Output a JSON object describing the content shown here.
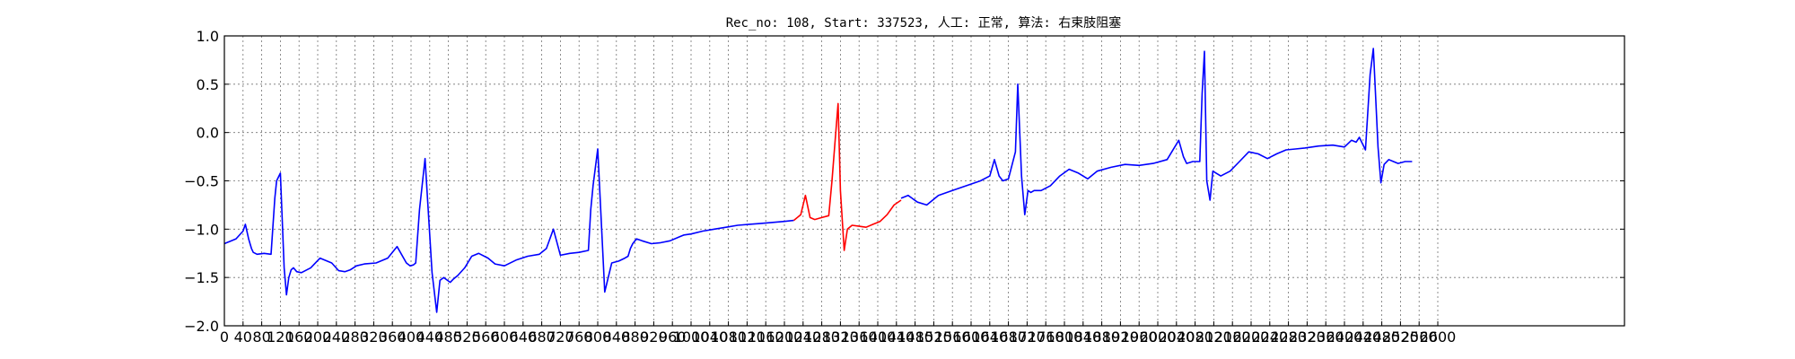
{
  "chart_data": {
    "type": "line",
    "title": "Rec_no: 108, Start: 337523, 人工: 正常, 算法: 右束肢阻塞",
    "xlabel": "",
    "ylabel": "",
    "xlim": [
      0,
      3000
    ],
    "ylim": [
      -2.0,
      1.0
    ],
    "x_ticks": [
      0,
      40,
      80,
      120,
      160,
      200,
      240,
      280,
      320,
      360,
      400,
      440,
      480,
      520,
      560,
      600,
      640,
      680,
      720,
      760,
      800,
      840,
      880,
      920,
      960,
      1000,
      1040,
      1080,
      1120,
      1160,
      1200,
      1240,
      1280,
      1320,
      1360,
      1400,
      1440,
      1480,
      1520,
      1560,
      1600,
      1640,
      1680,
      1720,
      1760,
      1800,
      1840,
      1880,
      1920,
      1960,
      2000,
      2040,
      2080,
      2120,
      2160,
      2200,
      2240,
      2280,
      2320,
      2360,
      2400,
      2440,
      2480,
      2520,
      2560,
      2600
    ],
    "x_tick_labels": [
      "0",
      "40",
      "80",
      "120",
      "160",
      "200",
      "240",
      "280",
      "320",
      "360",
      "400",
      "440",
      "480",
      "520",
      "560",
      "600",
      "640",
      "680",
      "720",
      "760",
      "800",
      "840",
      "880",
      "920",
      "960",
      "1000",
      "1040",
      "1080",
      "1120",
      "1160",
      "1200",
      "1240",
      "1280",
      "1320",
      "1360",
      "1400",
      "1440",
      "1480",
      "1520",
      "1560",
      "1600",
      "1640",
      "1680",
      "1720",
      "1760",
      "1800",
      "1840",
      "1880",
      "1920",
      "1960",
      "2000",
      "2040",
      "2080",
      "2120",
      "2160",
      "2200",
      "2240",
      "2280",
      "2320",
      "2360",
      "2400",
      "2440",
      "2480",
      "2520",
      "2560",
      "2600"
    ],
    "y_ticks": [
      -2.0,
      -1.5,
      -1.0,
      -0.5,
      0.0,
      0.5,
      1.0
    ],
    "y_tick_labels": [
      "−2.0",
      "−1.5",
      "−1.0",
      "−0.5",
      "0.0",
      "0.5",
      "1.0"
    ],
    "grid": true,
    "series": [
      {
        "color": "#0000ff",
        "x": [
          0,
          25,
          40,
          45,
          52,
          58,
          62,
          70,
          85,
          100,
          108,
          112,
          120,
          128,
          133,
          138,
          143,
          148,
          155,
          165,
          185,
          205,
          230,
          245,
          258,
          270,
          283,
          300,
          325,
          350,
          370,
          390,
          398,
          405,
          410,
          418,
          430,
          445,
          455,
          462,
          470,
          478,
          484,
          490,
          500,
          515,
          530,
          545,
          565,
          580,
          600,
          625,
          650,
          675,
          690,
          705,
          720,
          740,
          760,
          780,
          785,
          790,
          800,
          815,
          830,
          845,
          858,
          865,
          870,
          875,
          883,
          895,
          915,
          935,
          955,
          975,
          985,
          1000,
          1025,
          1050,
          1075,
          1100,
          1125,
          1150,
          1175,
          1200,
          1220
        ],
        "y": [
          -1.15,
          -1.1,
          -1.02,
          -0.95,
          -1.1,
          -1.2,
          -1.24,
          -1.26,
          -1.25,
          -1.26,
          -0.68,
          -0.5,
          -0.42,
          -1.4,
          -1.68,
          -1.5,
          -1.42,
          -1.4,
          -1.44,
          -1.45,
          -1.4,
          -1.3,
          -1.35,
          -1.43,
          -1.44,
          -1.42,
          -1.38,
          -1.36,
          -1.35,
          -1.3,
          -1.18,
          -1.35,
          -1.38,
          -1.37,
          -1.35,
          -0.8,
          -0.27,
          -1.45,
          -1.86,
          -1.53,
          -1.5,
          -1.53,
          -1.55,
          -1.52,
          -1.48,
          -1.4,
          -1.28,
          -1.25,
          -1.3,
          -1.36,
          -1.38,
          -1.32,
          -1.28,
          -1.26,
          -1.2,
          -1.0,
          -1.27,
          -1.25,
          -1.24,
          -1.22,
          -0.8,
          -0.55,
          -0.17,
          -1.65,
          -1.35,
          -1.33,
          -1.3,
          -1.28,
          -1.2,
          -1.15,
          -1.1,
          -1.12,
          -1.15,
          -1.14,
          -1.12,
          -1.08,
          -1.06,
          -1.05,
          -1.02,
          -1.0,
          -0.98,
          -0.96,
          -0.95,
          -0.94,
          -0.93,
          -0.92,
          -0.91
        ]
      },
      {
        "color": "#ff0000",
        "x": [
          1220,
          1235,
          1245,
          1255,
          1265,
          1280,
          1295,
          1302,
          1308,
          1315,
          1320,
          1328,
          1335,
          1345,
          1360,
          1375,
          1390,
          1405,
          1420,
          1435,
          1450
        ],
        "y": [
          -0.91,
          -0.85,
          -0.65,
          -0.88,
          -0.9,
          -0.88,
          -0.86,
          -0.5,
          -0.12,
          0.3,
          -0.6,
          -1.22,
          -1.0,
          -0.96,
          -0.97,
          -0.98,
          -0.95,
          -0.92,
          -0.85,
          -0.75,
          -0.7
        ]
      },
      {
        "color": "#0000ff",
        "x": [
          1450,
          1465,
          1485,
          1505,
          1530,
          1560,
          1590,
          1620,
          1640,
          1650,
          1660,
          1668,
          1680,
          1695,
          1700,
          1708,
          1715,
          1722,
          1728,
          1735,
          1750,
          1770,
          1790,
          1810,
          1830,
          1850,
          1870,
          1900,
          1930,
          1960,
          1990,
          2020,
          2045,
          2055,
          2062,
          2075,
          2090,
          2095,
          2100,
          2105,
          2112,
          2118,
          2125,
          2135,
          2155,
          2175,
          2195,
          2215,
          2235,
          2255,
          2275,
          2295,
          2315,
          2345,
          2375,
          2400,
          2415,
          2425,
          2432,
          2445,
          2455,
          2462,
          2472,
          2478,
          2485,
          2495,
          2505,
          2515,
          2530,
          2545
        ],
        "y": [
          -0.68,
          -0.65,
          -0.72,
          -0.75,
          -0.65,
          -0.6,
          -0.55,
          -0.5,
          -0.45,
          -0.28,
          -0.45,
          -0.5,
          -0.48,
          -0.2,
          0.5,
          -0.45,
          -0.85,
          -0.6,
          -0.62,
          -0.6,
          -0.6,
          -0.55,
          -0.45,
          -0.38,
          -0.42,
          -0.48,
          -0.4,
          -0.36,
          -0.33,
          -0.34,
          -0.32,
          -0.28,
          -0.08,
          -0.25,
          -0.32,
          -0.3,
          -0.3,
          0.4,
          0.84,
          -0.5,
          -0.7,
          -0.4,
          -0.42,
          -0.45,
          -0.4,
          -0.3,
          -0.2,
          -0.22,
          -0.27,
          -0.22,
          -0.18,
          -0.17,
          -0.16,
          -0.14,
          -0.13,
          -0.15,
          -0.08,
          -0.1,
          -0.05,
          -0.18,
          0.6,
          0.87,
          -0.15,
          -0.52,
          -0.33,
          -0.28,
          -0.3,
          -0.32,
          -0.3,
          -0.3
        ]
      }
    ]
  }
}
